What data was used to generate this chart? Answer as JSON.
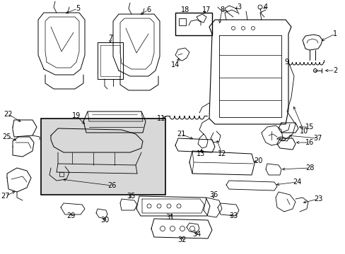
{
  "bg_color": "#ffffff",
  "line_color": "#000000",
  "fig_width": 4.89,
  "fig_height": 3.6,
  "dpi": 100,
  "label_fontsize": 7.0
}
